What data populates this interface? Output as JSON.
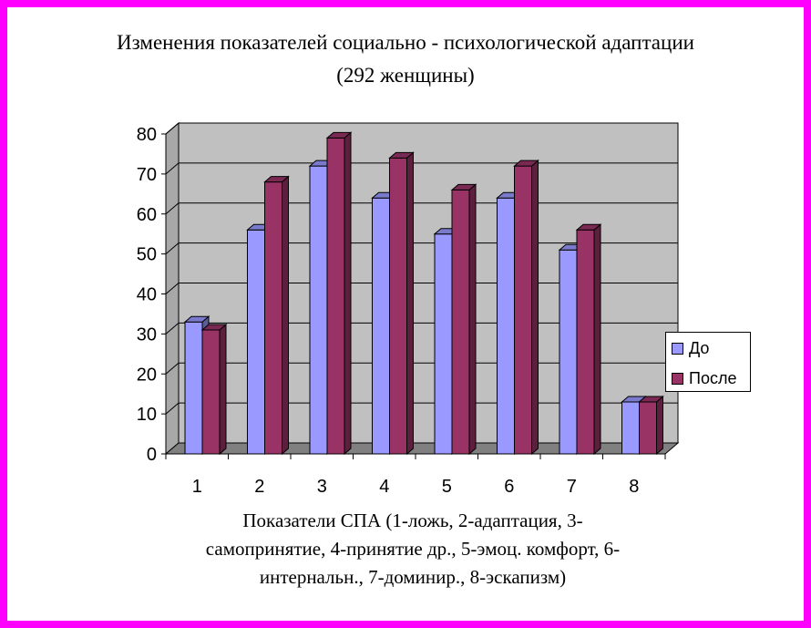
{
  "title_line1": "Изменения показателей социально - психологической адаптации",
  "title_line2": "(292 женщины)",
  "xlabel_lines": [
    "Показатели СПА (1-ложь, 2-адаптация, 3-",
    "самопринятие, 4-принятие др., 5-эмоц. комфорт, 6-",
    "интернальн., 7-доминир., 8-эскапизм)"
  ],
  "colors": {
    "frame": "#ff00ff",
    "wall": "#c0c0c0",
    "floor": "#808080",
    "series_do": "#9999ff",
    "series_posle": "#993366"
  },
  "legend": [
    {
      "label": "До",
      "color": "#9999ff"
    },
    {
      "label": "После",
      "color": "#993366"
    }
  ],
  "chart_data": {
    "type": "bar",
    "title": "Изменения показателей социально - психологической адаптации (292 женщины)",
    "xlabel": "Показатели СПА (1-ложь, 2-адаптация, 3-самопринятие, 4-принятие др., 5-эмоц. комфорт, 6-интернальн., 7-доминир., 8-эскапизм)",
    "ylabel": "",
    "categories": [
      "1",
      "2",
      "3",
      "4",
      "5",
      "6",
      "7",
      "8"
    ],
    "series": [
      {
        "name": "До",
        "values": [
          33,
          56,
          72,
          64,
          55,
          64,
          51,
          13
        ]
      },
      {
        "name": "После",
        "values": [
          31,
          68,
          79,
          74,
          66,
          72,
          56,
          13
        ]
      }
    ],
    "ylim": [
      0,
      80
    ],
    "yticks": [
      "0",
      "10",
      "20",
      "30",
      "40",
      "50",
      "60",
      "70",
      "80"
    ],
    "grid": true,
    "legend_position": "right"
  }
}
